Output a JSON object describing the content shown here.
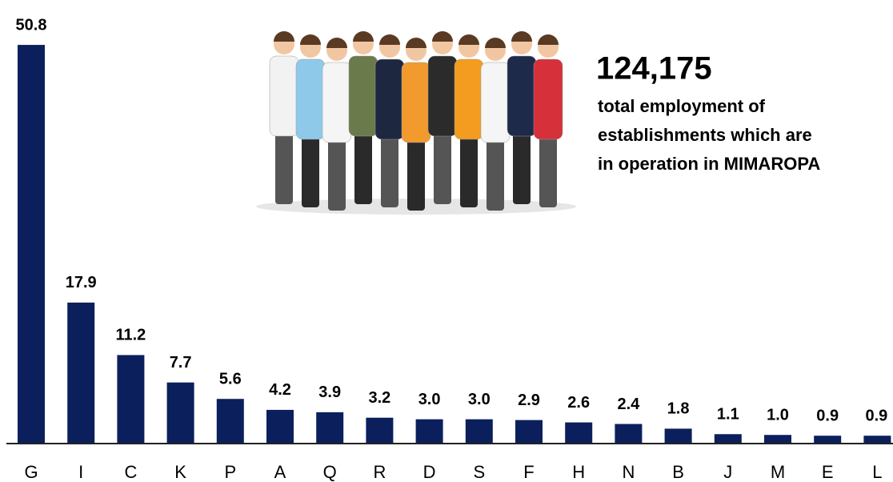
{
  "chart_data": {
    "type": "bar",
    "categories": [
      "G",
      "I",
      "C",
      "K",
      "P",
      "A",
      "Q",
      "R",
      "D",
      "S",
      "F",
      "H",
      "N",
      "B",
      "J",
      "M",
      "E",
      "L"
    ],
    "values": [
      50.8,
      17.9,
      11.2,
      7.7,
      5.6,
      4.2,
      3.9,
      3.2,
      3.0,
      3.0,
      2.9,
      2.6,
      2.4,
      1.8,
      1.1,
      1.0,
      0.9,
      0.9
    ],
    "value_labels": [
      "50.8",
      "17.9",
      "11.2",
      "7.7",
      "5.6",
      "4.2",
      "3.9",
      "3.2",
      "3.0",
      "3.0",
      "2.9",
      "2.6",
      "2.4",
      "1.8",
      "1.1",
      "1.0",
      "0.9",
      "0.9"
    ],
    "color": "#0b1f5c",
    "ylim": [
      0,
      55
    ],
    "annotation": {
      "headline": "124,175",
      "lines": [
        "total employment of",
        "establishments which are",
        "in operation in MIMAROPA"
      ]
    }
  }
}
